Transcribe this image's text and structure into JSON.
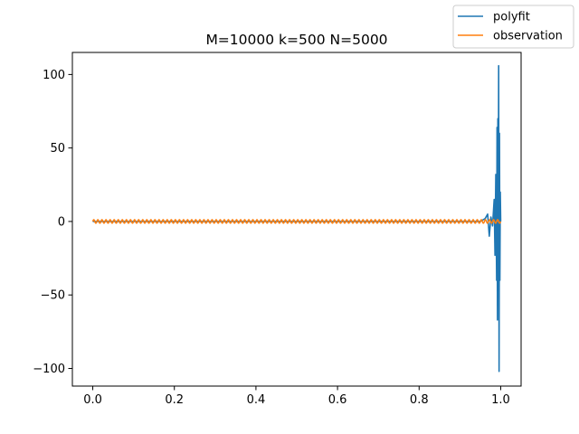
{
  "chart_data": {
    "type": "line",
    "title": "M=10000 k=500 N=5000",
    "xlabel": "",
    "ylabel": "",
    "xlim": [
      -0.05,
      1.05
    ],
    "ylim": [
      -112,
      115
    ],
    "x_ticks": [
      0.0,
      0.2,
      0.4,
      0.6,
      0.8,
      1.0
    ],
    "x_tick_labels": [
      "0.0",
      "0.2",
      "0.4",
      "0.6",
      "0.8",
      "1.0"
    ],
    "y_ticks": [
      100,
      50,
      0,
      -50,
      -100
    ],
    "y_tick_labels": [
      "100",
      "50",
      "0",
      "−50",
      "−100"
    ],
    "grid": false,
    "legend_position": "top-right",
    "series": [
      {
        "name": "polyfit",
        "color": "#1f77b4",
        "x": [
          0.0,
          0.1,
          0.2,
          0.3,
          0.4,
          0.5,
          0.6,
          0.7,
          0.8,
          0.9,
          0.95,
          0.962,
          0.968,
          0.972,
          0.976,
          0.98,
          0.984,
          0.986,
          0.988,
          0.99,
          0.991,
          0.992,
          0.993,
          0.994,
          0.995,
          0.996,
          0.997,
          0.998,
          0.999,
          1.0
        ],
        "y": [
          0,
          0,
          0,
          0,
          0,
          0,
          0,
          0,
          0,
          0,
          0,
          2,
          5,
          -10,
          3,
          -3,
          15,
          -23,
          32,
          -40,
          64,
          -67,
          70,
          -15,
          106,
          -102,
          60,
          -40,
          20,
          0
        ]
      },
      {
        "name": "observation",
        "color": "#ff7f0e",
        "amplitude": 1.2,
        "x_range": [
          0.0,
          1.0
        ],
        "cycles": 500
      }
    ]
  }
}
